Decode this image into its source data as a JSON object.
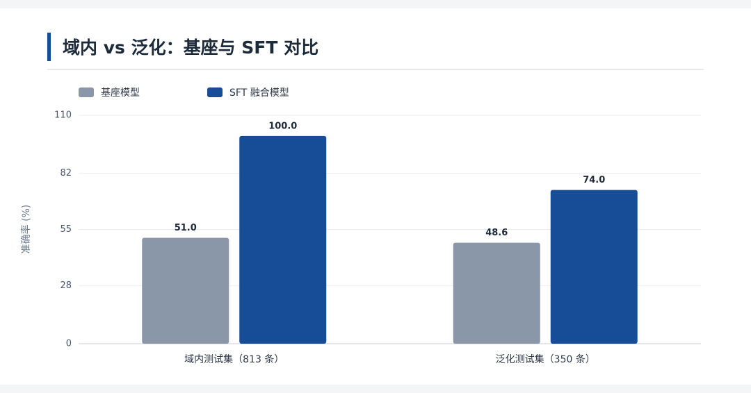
{
  "chart_data": {
    "type": "bar",
    "title": "域内 vs 泛化：基座与 SFT 对比",
    "y_label": "准确率 (%)",
    "categories": [
      "域内测试集（813 条）",
      "泛化测试集（350 条）"
    ],
    "series": [
      {
        "name": "基座模型",
        "color": "#8a97a8",
        "values": [
          51,
          48.6
        ],
        "value_labels": [
          "51.0",
          "48.6"
        ]
      },
      {
        "name": "SFT 融合模型",
        "color": "#174c96",
        "values": [
          100,
          74
        ],
        "value_labels": [
          "100.0",
          "74.0"
        ]
      }
    ],
    "ylim": [
      0,
      110
    ],
    "yticks": [
      0,
      28,
      55,
      82,
      110
    ],
    "grid": true
  }
}
